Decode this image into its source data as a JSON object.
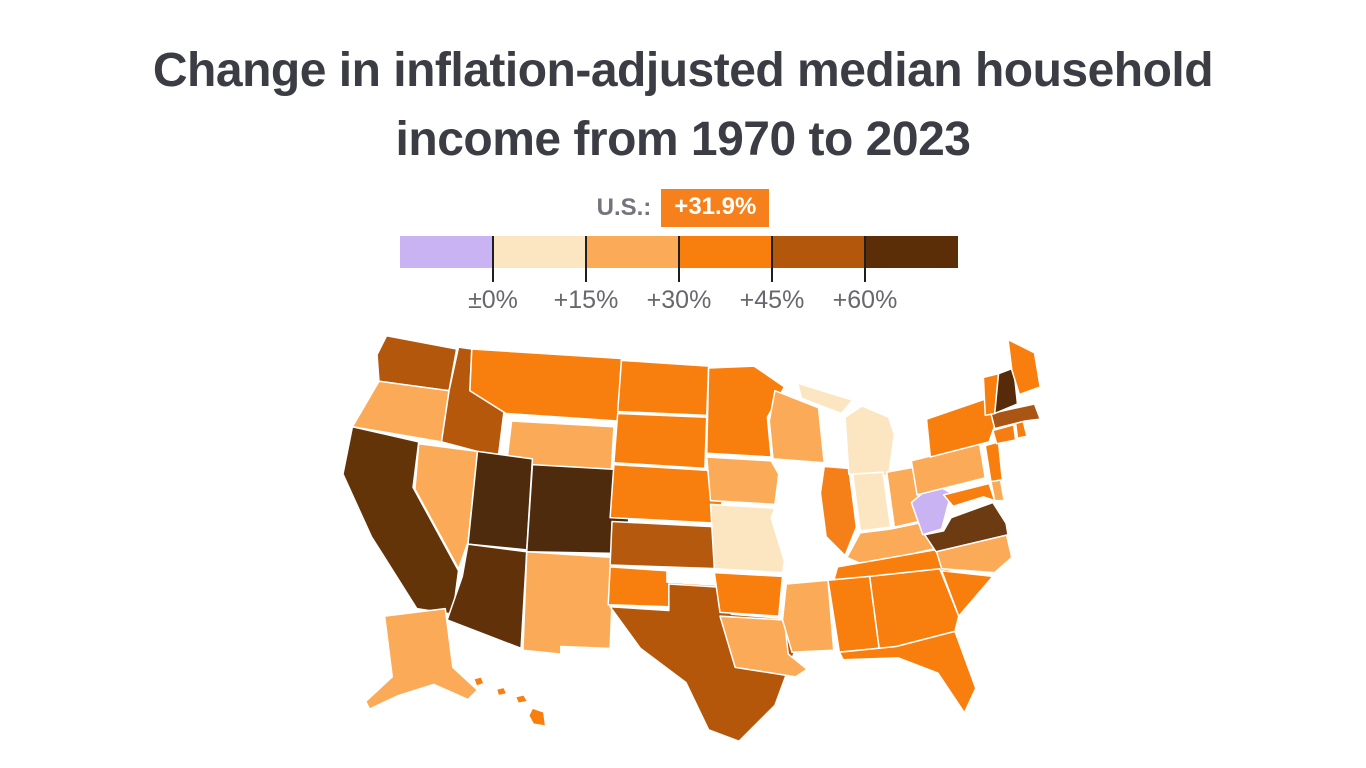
{
  "title": "Change in inflation-adjusted median household income from 1970 to 2023",
  "legend": {
    "us_label": "U.S.:",
    "us_value": "+31.9%",
    "us_badge_color": "#f6811c",
    "tick_labels": [
      "±0%",
      "+15%",
      "+30%",
      "+45%",
      "+60%"
    ]
  },
  "chart_data": {
    "type": "choropleth",
    "title": "Change in inflation-adjusted median household income from 1970 to 2023",
    "region": "United States, by state",
    "us_value_label": "+31.9%",
    "legend_bins": [
      {
        "label": "decline (below ±0%)",
        "color": "#c9b3f2"
      },
      {
        "label": "±0% to +15%",
        "color": "#fce6c2"
      },
      {
        "label": "+15% to +30%",
        "color": "#fbab57"
      },
      {
        "label": "+30% to +45%",
        "color": "#f87f0e"
      },
      {
        "label": "+45% to +60%",
        "color": "#b2570c"
      },
      {
        "label": "above +60%",
        "color": "#5c2e07"
      }
    ],
    "axis_tick_labels": [
      "±0%",
      "+15%",
      "+30%",
      "+45%",
      "+60%"
    ],
    "states": [
      {
        "id": "WA",
        "name": "Washington",
        "bin": "+45% to +60%",
        "color": "#b2570c"
      },
      {
        "id": "OR",
        "name": "Oregon",
        "bin": "+15% to +30%",
        "color": "#fbab57"
      },
      {
        "id": "CA",
        "name": "California",
        "bin": "above +60%",
        "color": "#643409"
      },
      {
        "id": "NV",
        "name": "Nevada",
        "bin": "+15% to +30%",
        "color": "#fbab57"
      },
      {
        "id": "ID",
        "name": "Idaho",
        "bin": "+45% to +60%",
        "color": "#b5580b"
      },
      {
        "id": "MT",
        "name": "Montana",
        "bin": "+30% to +45%",
        "color": "#f87f0e"
      },
      {
        "id": "WY",
        "name": "Wyoming",
        "bin": "+15% to +30%",
        "color": "#fbab57"
      },
      {
        "id": "UT",
        "name": "Utah",
        "bin": "above +60%",
        "color": "#4f2b0e"
      },
      {
        "id": "CO",
        "name": "Colorado",
        "bin": "above +60%",
        "color": "#4f2b0e"
      },
      {
        "id": "AZ",
        "name": "Arizona",
        "bin": "above +60%",
        "color": "#613209"
      },
      {
        "id": "NM",
        "name": "New Mexico",
        "bin": "+15% to +30%",
        "color": "#fbab57"
      },
      {
        "id": "ND",
        "name": "North Dakota",
        "bin": "+30% to +45%",
        "color": "#f87f0e"
      },
      {
        "id": "SD",
        "name": "South Dakota",
        "bin": "+30% to +45%",
        "color": "#f87f0e"
      },
      {
        "id": "NE",
        "name": "Nebraska",
        "bin": "+30% to +45%",
        "color": "#f87f0e"
      },
      {
        "id": "KS",
        "name": "Kansas",
        "bin": "+45% to +60%",
        "color": "#b4590e"
      },
      {
        "id": "OK",
        "name": "Oklahoma",
        "bin": "+30% to +45%",
        "color": "#f87f0e"
      },
      {
        "id": "TX",
        "name": "Texas",
        "bin": "+45% to +60%",
        "color": "#b4570a"
      },
      {
        "id": "MN",
        "name": "Minnesota",
        "bin": "+30% to +45%",
        "color": "#f87f0e"
      },
      {
        "id": "IA",
        "name": "Iowa",
        "bin": "+15% to +30%",
        "color": "#fbab57"
      },
      {
        "id": "MO",
        "name": "Missouri",
        "bin": "±0% to +15%",
        "color": "#fce6c2"
      },
      {
        "id": "WI",
        "name": "Wisconsin",
        "bin": "+15% to +30%",
        "color": "#fbab57"
      },
      {
        "id": "IL",
        "name": "Illinois",
        "bin": "+30% to +45%",
        "color": "#f5801a"
      },
      {
        "id": "MI",
        "name": "Michigan",
        "bin": "±0% to +15%",
        "color": "#fce6c2"
      },
      {
        "id": "IN",
        "name": "Indiana",
        "bin": "±0% to +15%",
        "color": "#fce6c2"
      },
      {
        "id": "OH",
        "name": "Ohio",
        "bin": "+15% to +30%",
        "color": "#fbab57"
      },
      {
        "id": "KY",
        "name": "Kentucky",
        "bin": "+15% to +30%",
        "color": "#fbab57"
      },
      {
        "id": "TN",
        "name": "Tennessee",
        "bin": "+30% to +45%",
        "color": "#f87f0e"
      },
      {
        "id": "AR",
        "name": "Arkansas",
        "bin": "+30% to +45%",
        "color": "#f87f0e"
      },
      {
        "id": "LA",
        "name": "Louisiana",
        "bin": "+15% to +30%",
        "color": "#fbab57"
      },
      {
        "id": "MS",
        "name": "Mississippi",
        "bin": "+15% to +30%",
        "color": "#fbab57"
      },
      {
        "id": "AL",
        "name": "Alabama",
        "bin": "+30% to +45%",
        "color": "#f87f0e"
      },
      {
        "id": "GA",
        "name": "Georgia",
        "bin": "+30% to +45%",
        "color": "#f87f0e"
      },
      {
        "id": "FL",
        "name": "Florida",
        "bin": "+30% to +45%",
        "color": "#f87f0e"
      },
      {
        "id": "SC",
        "name": "South Carolina",
        "bin": "+30% to +45%",
        "color": "#f87f0e"
      },
      {
        "id": "NC",
        "name": "North Carolina",
        "bin": "+15% to +30%",
        "color": "#fbab57"
      },
      {
        "id": "VA",
        "name": "Virginia",
        "bin": "above +60%",
        "color": "#6d3b12"
      },
      {
        "id": "WV",
        "name": "West Virginia",
        "bin": "decline (below ±0%)",
        "color": "#c9b3f2"
      },
      {
        "id": "MD",
        "name": "Maryland",
        "bin": "+30% to +45%",
        "color": "#f87f0e"
      },
      {
        "id": "DE",
        "name": "Delaware",
        "bin": "+15% to +30%",
        "color": "#fbab57"
      },
      {
        "id": "PA",
        "name": "Pennsylvania",
        "bin": "+15% to +30%",
        "color": "#fbab57"
      },
      {
        "id": "NJ",
        "name": "New Jersey",
        "bin": "+30% to +45%",
        "color": "#f87f0e"
      },
      {
        "id": "NY",
        "name": "New York",
        "bin": "+30% to +45%",
        "color": "#f87f0e"
      },
      {
        "id": "CT",
        "name": "Connecticut",
        "bin": "+30% to +45%",
        "color": "#f57d12"
      },
      {
        "id": "RI",
        "name": "Rhode Island",
        "bin": "+30% to +45%",
        "color": "#f87f0e"
      },
      {
        "id": "MA",
        "name": "Massachusetts",
        "bin": "+45% to +60%",
        "color": "#aa5513"
      },
      {
        "id": "VT",
        "name": "Vermont",
        "bin": "+30% to +45%",
        "color": "#f87f0e"
      },
      {
        "id": "NH",
        "name": "New Hampshire",
        "bin": "above +60%",
        "color": "#572b0a"
      },
      {
        "id": "ME",
        "name": "Maine",
        "bin": "+30% to +45%",
        "color": "#f87f0e"
      },
      {
        "id": "AK",
        "name": "Alaska",
        "bin": "+15% to +30%",
        "color": "#fbab57"
      },
      {
        "id": "HI",
        "name": "Hawaii",
        "bin": "+30% to +45%",
        "color": "#f87f0e"
      }
    ]
  }
}
